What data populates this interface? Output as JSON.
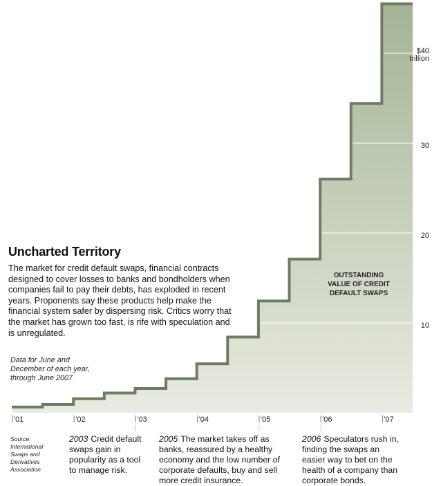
{
  "chart_data": {
    "type": "line",
    "style": "step-area",
    "title": "Uncharted Territory",
    "description": "The market for credit default swaps, financial contracts designed  to cover losses to banks and bondholders when companies fail to pay their debts, has exploded in recent years. Proponents say these products help make the financial system safer by dispersing risk. Critics worry that the market has grown too fast, is rife with speculation and is unregulated.",
    "note": "Data for June and December of each year, through June 2007",
    "series_label": [
      "OUTSTANDING",
      "VALUE OF CREDIT",
      "DEFAULT SWAPS"
    ],
    "x": [
      "Jun 2001",
      "Dec 2001",
      "Jun 2002",
      "Dec 2002",
      "Jun 2003",
      "Dec 2003",
      "Jun 2004",
      "Dec 2004",
      "Jun 2005",
      "Dec 2005",
      "Jun 2006",
      "Dec 2006",
      "Jun 2007"
    ],
    "values": [
      0.63,
      0.92,
      1.56,
      2.19,
      2.69,
      3.78,
      5.44,
      8.42,
      12.43,
      17.1,
      26.0,
      34.4,
      45.5
    ],
    "units": "trillion dollars",
    "ylim": [
      0,
      46
    ],
    "y_ticks": [
      {
        "value": 10,
        "label": "10"
      },
      {
        "value": 20,
        "label": "20"
      },
      {
        "value": 30,
        "label": "30"
      },
      {
        "value": 40,
        "label": "$40",
        "sublabel": "trillion"
      }
    ],
    "x_ticks": [
      "'01",
      "'02",
      "'03",
      "'04",
      "'05",
      "'06",
      "'07"
    ],
    "grid": true,
    "source": "Source: International Swaps and Derivatives Association",
    "annotations": [
      {
        "year": "2003",
        "text": "Credit default swaps gain in popularity as a tool to manage risk.",
        "tick": 2
      },
      {
        "year": "2005",
        "text": "The market takes off as banks, reassured by a healthy economy and the low number of corporate defaults, buy and sell more credit insurance.",
        "tick": 4
      },
      {
        "year": "2006",
        "text": "Speculators rush in, finding the swaps an easier way to bet on the health of a company than corporate bonds.",
        "tick": 5
      }
    ],
    "colors": {
      "fill_top": "#a4b394",
      "fill_bottom": "#e8ebe1",
      "line": "#6f7b65",
      "grid": "#ffffff"
    }
  }
}
